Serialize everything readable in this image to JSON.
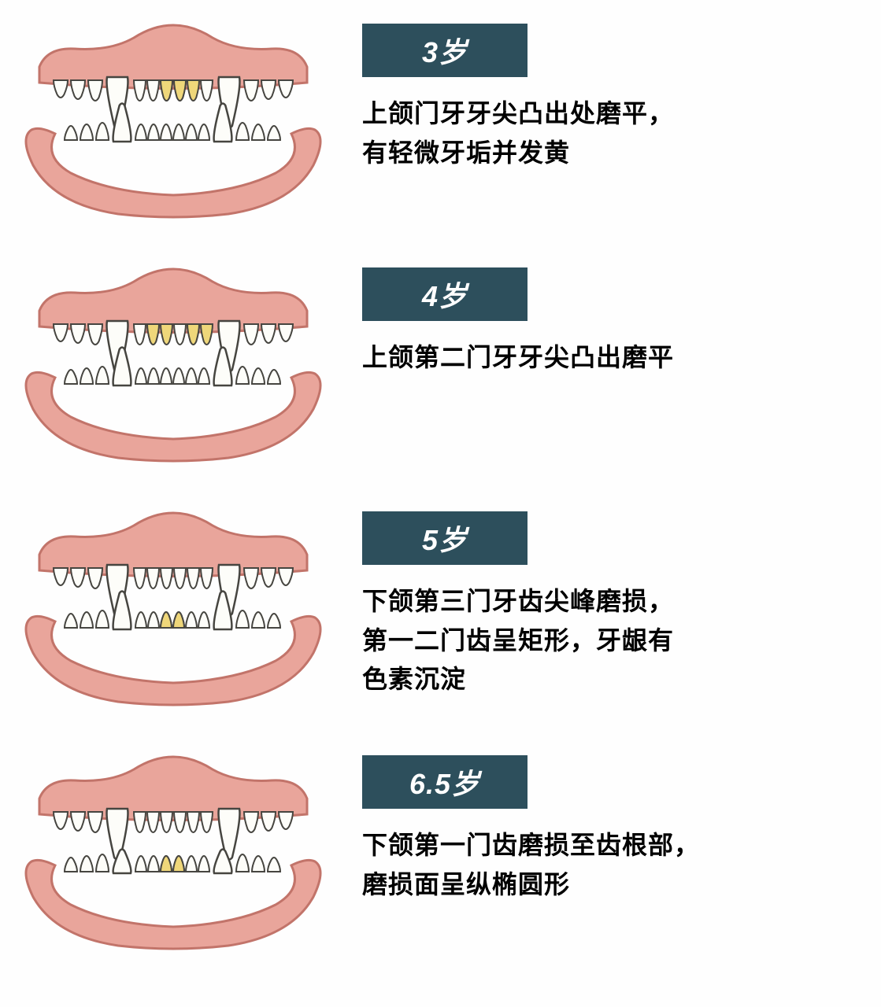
{
  "colors": {
    "gum_fill": "#e9a59b",
    "gum_stroke": "#c2746a",
    "tooth_fill": "#fdfdf9",
    "tooth_stroke": "#464540",
    "tooth_yellow": "#efd77a",
    "badge_bg": "#2d4f5c",
    "badge_text": "#ffffff",
    "desc_text": "#000000",
    "page_bg": "#fefefe"
  },
  "typography": {
    "badge_fontsize": 36,
    "desc_fontsize": 32
  },
  "layout": {
    "badge_min_width": 210
  },
  "stages": [
    {
      "badge": "3岁",
      "desc": "上颌门牙牙尖凸出处磨平，\n有轻微牙垢并发黄",
      "yellow_upper_center": [
        4,
        5
      ],
      "yellow_upper_wide": [],
      "yellow_lower_center": [],
      "upper_canine_long": true,
      "lower_canine_long": true
    },
    {
      "badge": "4岁",
      "desc": "上颌第二门牙牙尖凸出磨平",
      "yellow_upper_center": [],
      "yellow_upper_wide": [
        3,
        6
      ],
      "yellow_lower_center": [],
      "upper_canine_long": true,
      "lower_canine_long": true
    },
    {
      "badge": "5岁",
      "desc": "下颌第三门牙齿尖峰磨损，\n第一二门齿呈矩形，牙龈有\n色素沉淀",
      "yellow_upper_center": [],
      "yellow_upper_wide": [],
      "yellow_lower_center": [
        3,
        4
      ],
      "upper_canine_long": true,
      "lower_canine_long": true
    },
    {
      "badge": "6.5岁",
      "desc": "下颌第一门齿磨损至齿根部，\n磨损面呈纵椭圆形",
      "yellow_upper_center": [],
      "yellow_upper_wide": [],
      "yellow_lower_center": [
        3,
        4
      ],
      "upper_canine_long": true,
      "lower_canine_long": false
    }
  ]
}
